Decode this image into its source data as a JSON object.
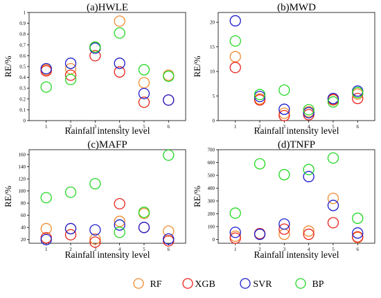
{
  "chart_data": [
    {
      "type": "scatter",
      "title": "(a)HWLE",
      "xlabel": "Rainfall intensity level",
      "ylabel": "RE/%",
      "categories": [
        "1",
        "2",
        "3",
        "4",
        "5",
        "6"
      ],
      "yticks": [
        "0",
        "0.1",
        "0.2",
        "0.3",
        "0.4",
        "0.5",
        "0.6",
        "0.7",
        "0.8",
        "0.9",
        "1"
      ],
      "ylim": [
        0,
        1
      ],
      "series": [
        {
          "name": "RF",
          "values": [
            0.47,
            0.48,
            0.68,
            0.92,
            0.35,
            0.42
          ]
        },
        {
          "name": "XGB",
          "values": [
            0.46,
            0.42,
            0.6,
            0.45,
            0.17,
            0.19
          ]
        },
        {
          "name": "SVR",
          "values": [
            0.48,
            0.53,
            0.67,
            0.53,
            0.25,
            0.19
          ]
        },
        {
          "name": "BP",
          "values": [
            0.31,
            0.38,
            0.68,
            0.81,
            0.47,
            0.41
          ]
        }
      ]
    },
    {
      "type": "scatter",
      "title": "(b)MWD",
      "xlabel": "Rainfall intensity level",
      "ylabel": "RE/%",
      "categories": [
        "1",
        "2",
        "3",
        "4",
        "5",
        "6"
      ],
      "yticks": [
        "0",
        "5",
        "10",
        "15",
        "20"
      ],
      "ylim": [
        0,
        22
      ],
      "series": [
        {
          "name": "RF",
          "values": [
            13.0,
            4.4,
            1.5,
            1.8,
            4.2,
            5.4
          ]
        },
        {
          "name": "XGB",
          "values": [
            10.8,
            4.2,
            1.0,
            1.2,
            4.3,
            4.5
          ]
        },
        {
          "name": "SVR",
          "values": [
            20.3,
            4.9,
            2.3,
            1.6,
            4.5,
            6.0
          ]
        },
        {
          "name": "BP",
          "values": [
            16.2,
            5.3,
            6.2,
            2.2,
            3.8,
            5.7
          ]
        }
      ]
    },
    {
      "type": "scatter",
      "title": "(c)MAFP",
      "xlabel": "Rainfall intensity level",
      "ylabel": "RE/%",
      "categories": [
        "1",
        "2",
        "3",
        "4",
        "5",
        "6"
      ],
      "yticks": [
        "20",
        "40",
        "60",
        "80",
        "100",
        "120",
        "140",
        "160"
      ],
      "ylim": [
        14,
        168
      ],
      "series": [
        {
          "name": "RF",
          "values": [
            38,
            38,
            21,
            50,
            63,
            34
          ]
        },
        {
          "name": "XGB",
          "values": [
            23,
            28,
            16,
            79,
            40,
            18
          ]
        },
        {
          "name": "SVR",
          "values": [
            20,
            38,
            36,
            44,
            40,
            21
          ]
        },
        {
          "name": "BP",
          "values": [
            89,
            98,
            112,
            32,
            65,
            159
          ]
        }
      ]
    },
    {
      "type": "scatter",
      "title": "(d)TNFP",
      "xlabel": "Rainfall intensity level",
      "ylabel": "RE/%",
      "categories": [
        "1",
        "2",
        "3",
        "4",
        "5",
        "6"
      ],
      "yticks": [
        "0",
        "100",
        "200",
        "300",
        "400",
        "500",
        "600",
        "700"
      ],
      "ylim": [
        -30,
        700
      ],
      "series": [
        {
          "name": "RF",
          "values": [
            25,
            45,
            40,
            65,
            320,
            15
          ]
        },
        {
          "name": "XGB",
          "values": [
            10,
            45,
            80,
            40,
            130,
            20
          ]
        },
        {
          "name": "SVR",
          "values": [
            55,
            40,
            120,
            490,
            265,
            50
          ]
        },
        {
          "name": "BP",
          "values": [
            205,
            590,
            505,
            545,
            635,
            165
          ]
        }
      ]
    }
  ],
  "legend": [
    {
      "name": "RF",
      "color": "#F28A2E"
    },
    {
      "name": "XGB",
      "color": "#E8231C"
    },
    {
      "name": "SVR",
      "color": "#1C1CCC"
    },
    {
      "name": "BP",
      "color": "#22D822"
    }
  ]
}
